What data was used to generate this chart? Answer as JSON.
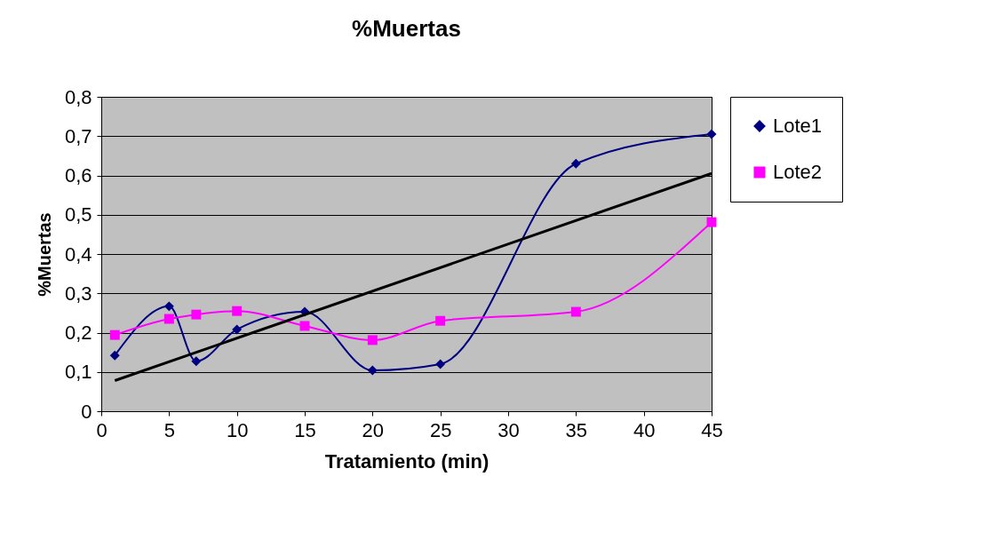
{
  "chart_data": {
    "type": "line",
    "title": "%Muertas",
    "xlabel": "Tratamiento (min)",
    "ylabel": "%Muertas",
    "x": [
      1,
      5,
      7,
      10,
      15,
      20,
      25,
      35,
      45
    ],
    "series": [
      {
        "name": "Lote1",
        "color": "#000080",
        "marker": "diamond",
        "values": [
          0.142,
          0.267,
          0.127,
          0.208,
          0.253,
          0.104,
          0.12,
          0.63,
          0.705
        ]
      },
      {
        "name": "Lote2",
        "color": "#ff00ff",
        "marker": "square",
        "values": [
          0.194,
          0.235,
          0.246,
          0.255,
          0.217,
          0.181,
          0.23,
          0.253,
          0.481
        ]
      },
      {
        "type": "line",
        "color": "#000000",
        "x": [
          1,
          45
        ],
        "values": [
          0.078,
          0.605
        ]
      }
    ],
    "xlim": [
      0,
      45
    ],
    "xticks": [
      0,
      5,
      10,
      15,
      20,
      25,
      30,
      35,
      40,
      45
    ],
    "ylim": [
      0,
      0.8
    ],
    "yticks": [
      {
        "value": 0,
        "label": "0"
      },
      {
        "value": 0.1,
        "label": "0,1"
      },
      {
        "value": 0.2,
        "label": "0,2"
      },
      {
        "value": 0.3,
        "label": "0,3"
      },
      {
        "value": 0.4,
        "label": "0,4"
      },
      {
        "value": 0.5,
        "label": "0,5"
      },
      {
        "value": 0.6,
        "label": "0,6"
      },
      {
        "value": 0.7,
        "label": "0,7"
      },
      {
        "value": 0.8,
        "label": "0,8"
      }
    ],
    "grid": "y",
    "legend": "right"
  }
}
